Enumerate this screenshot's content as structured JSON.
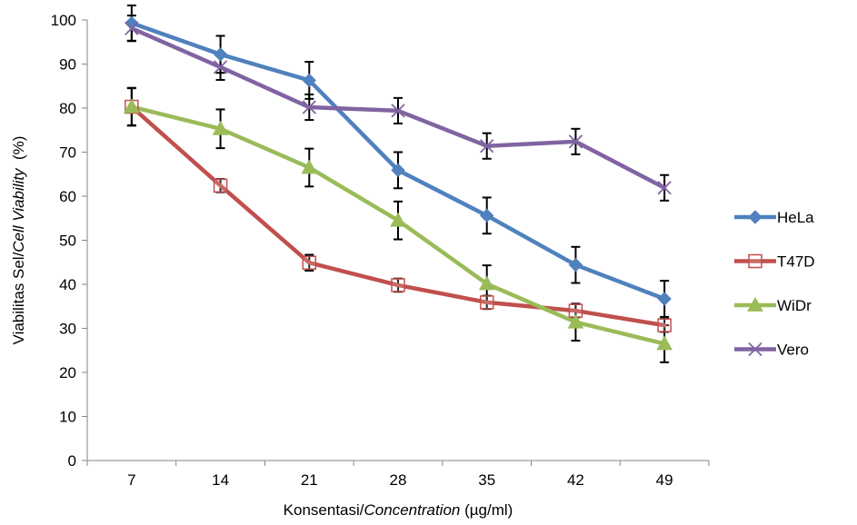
{
  "chart_data": {
    "type": "line",
    "categories": [
      "7",
      "14",
      "21",
      "28",
      "35",
      "42",
      "49"
    ],
    "x": [
      7,
      14,
      21,
      28,
      35,
      42,
      49
    ],
    "xlabel": {
      "plain": "Konsentasi/",
      "italic": "Concentration",
      "suffix": " (µg/ml)"
    },
    "ylabel": {
      "plain": "Viabilitas Sel/",
      "italic": "Cell Viability",
      "suffix": "  (%)"
    },
    "ylim": [
      0,
      100
    ],
    "yticks": [
      "0",
      "10",
      "20",
      "30",
      "40",
      "50",
      "60",
      "70",
      "80",
      "90",
      "100"
    ],
    "grid": false,
    "legend_position": "right",
    "series": [
      {
        "name": "HeLa",
        "color": "#4F81BD",
        "marker": "diamond",
        "values": [
          99.3,
          92.2,
          86.3,
          65.9,
          55.6,
          44.4,
          36.7
        ],
        "errors": [
          4.0,
          4.2,
          4.2,
          4.1,
          4.1,
          4.1,
          4.1
        ]
      },
      {
        "name": "T47D",
        "color": "#C0504D",
        "marker": "square",
        "values": [
          80.3,
          62.4,
          44.9,
          39.8,
          35.9,
          34.0,
          30.7
        ],
        "errors": [
          4.3,
          1.5,
          1.8,
          1.5,
          1.5,
          1.5,
          1.5
        ]
      },
      {
        "name": "WiDr",
        "color": "#9BBB59",
        "marker": "triangle",
        "values": [
          80.3,
          75.3,
          66.5,
          54.5,
          40.1,
          31.4,
          26.5
        ],
        "errors": [
          4.2,
          4.4,
          4.3,
          4.3,
          4.2,
          4.2,
          4.2
        ]
      },
      {
        "name": "Vero",
        "color": "#8064A2",
        "marker": "x",
        "values": [
          98.1,
          89.3,
          80.2,
          79.4,
          71.4,
          72.4,
          61.9
        ],
        "errors": [
          2.9,
          2.9,
          2.9,
          2.9,
          2.9,
          2.9,
          2.9
        ]
      }
    ]
  }
}
